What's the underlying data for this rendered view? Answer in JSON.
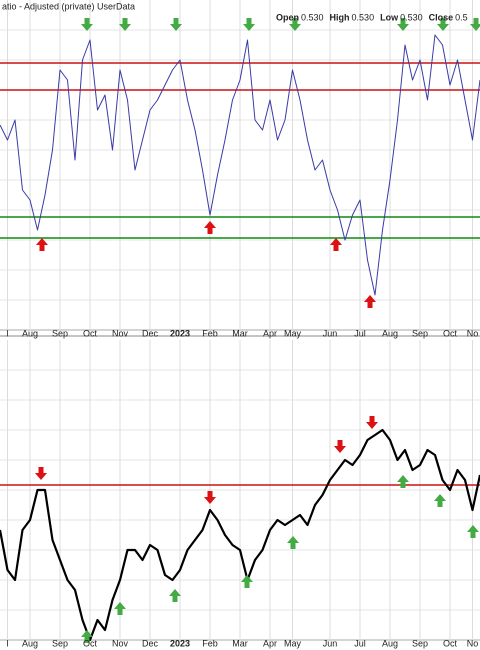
{
  "header": {
    "title": "atio - Adjusted (private) UserData",
    "quote": [
      {
        "label": "Open",
        "value": "0.530"
      },
      {
        "label": "High",
        "value": "0.530"
      },
      {
        "label": "Low",
        "value": "0.530"
      },
      {
        "label": "Close",
        "value": "0.5"
      }
    ]
  },
  "chart_data": [
    {
      "type": "line",
      "categories": [
        null,
        "l",
        null,
        null,
        "Aug",
        null,
        null,
        null,
        "Sep",
        null,
        null,
        null,
        "Oct",
        null,
        null,
        null,
        "Nov",
        null,
        null,
        null,
        "Dec",
        null,
        null,
        null,
        "2023",
        null,
        null,
        null,
        "Feb",
        null,
        null,
        null,
        "Mar",
        null,
        null,
        null,
        "Apr",
        null,
        null,
        "May",
        null,
        null,
        null,
        null,
        "Jun",
        null,
        null,
        null,
        "Jul",
        null,
        null,
        null,
        "Aug",
        null,
        null,
        null,
        "Sep",
        null,
        null,
        null,
        "Oct",
        null,
        null,
        "No",
        null
      ],
      "series": [
        {
          "color": "#3a3aa8",
          "values": [
            205,
            190,
            210,
            140,
            130,
            100,
            135,
            180,
            260,
            250,
            170,
            270,
            290,
            220,
            235,
            180,
            260,
            230,
            160,
            190,
            220,
            230,
            245,
            260,
            270,
            230,
            200,
            160,
            115,
            155,
            190,
            230,
            250,
            290,
            210,
            200,
            230,
            190,
            210,
            260,
            230,
            190,
            160,
            170,
            140,
            120,
            90,
            115,
            130,
            70,
            35,
            100,
            150,
            210,
            285,
            250,
            270,
            230,
            295,
            285,
            245,
            270,
            230,
            190,
            250
          ]
        }
      ],
      "hlines": [
        {
          "value": 267,
          "color": "#cc1111"
        },
        {
          "value": 240,
          "color": "#cc1111"
        },
        {
          "value": 113,
          "color": "#118811"
        },
        {
          "value": 92,
          "color": "#118811"
        }
      ],
      "ylim": [
        0,
        330
      ],
      "grid": true
    },
    {
      "type": "line",
      "categories": [
        null,
        "l",
        null,
        null,
        "Aug",
        null,
        null,
        null,
        "Sep",
        null,
        null,
        null,
        "Oct",
        null,
        null,
        null,
        "Nov",
        null,
        null,
        null,
        "Dec",
        null,
        null,
        null,
        "2023",
        null,
        null,
        null,
        "Feb",
        null,
        null,
        null,
        "Mar",
        null,
        null,
        null,
        "Apr",
        null,
        null,
        "May",
        null,
        null,
        null,
        null,
        "Jun",
        null,
        null,
        null,
        "Jul",
        null,
        null,
        null,
        "Aug",
        null,
        null,
        null,
        "Sep",
        null,
        null,
        null,
        "Oct",
        null,
        null,
        "No",
        null
      ],
      "series": [
        {
          "color": "#000000",
          "values": [
            110,
            70,
            60,
            110,
            120,
            150,
            150,
            100,
            80,
            60,
            50,
            20,
            0,
            20,
            10,
            40,
            60,
            90,
            90,
            80,
            95,
            90,
            65,
            60,
            70,
            90,
            100,
            110,
            130,
            120,
            105,
            95,
            90,
            60,
            80,
            90,
            110,
            120,
            115,
            120,
            125,
            115,
            135,
            145,
            160,
            170,
            180,
            175,
            185,
            200,
            205,
            210,
            200,
            180,
            190,
            170,
            175,
            190,
            185,
            160,
            150,
            170,
            160,
            130,
            165
          ]
        }
      ],
      "hlines": [
        {
          "value": 155,
          "color": "#cc1111"
        }
      ],
      "ylim": [
        0,
        300
      ],
      "grid": true
    }
  ]
}
